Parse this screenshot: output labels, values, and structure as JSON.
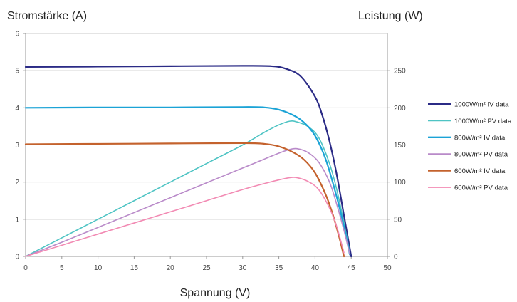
{
  "chart_data": {
    "type": "line",
    "ylabel_left": "Stromstärke (A)",
    "ylabel_right": "Leistung (W)",
    "xlabel": "Spannung (V)",
    "xlim": [
      0,
      50
    ],
    "ylim_left": [
      0,
      6
    ],
    "ylim_right": [
      0,
      300
    ],
    "x_ticks": [
      0,
      5,
      10,
      15,
      20,
      25,
      30,
      35,
      40,
      45,
      50
    ],
    "y_left_ticks": [
      0,
      1,
      2,
      3,
      4,
      5,
      6
    ],
    "y_right_ticks": [
      0,
      50,
      100,
      150,
      200,
      250
    ],
    "grid": true,
    "legend_position": "right",
    "series": [
      {
        "name": "1000W/m² IV data",
        "axis": "left",
        "color": "#2b2b86",
        "x": [
          0,
          10,
          20,
          30,
          34,
          36,
          38,
          40,
          41,
          42,
          43,
          44,
          45
        ],
        "y": [
          5.1,
          5.11,
          5.12,
          5.13,
          5.12,
          5.05,
          4.85,
          4.3,
          3.8,
          3.1,
          2.2,
          1.1,
          0
        ]
      },
      {
        "name": "1000W/m² PV data",
        "axis": "right",
        "color": "#4fc4c4",
        "x": [
          0,
          5,
          10,
          15,
          20,
          25,
          30,
          33,
          35,
          36.5,
          37.5,
          39,
          40.5,
          42,
          43,
          44,
          44.8
        ],
        "y": [
          0,
          25,
          50,
          75,
          100,
          125,
          150,
          167,
          177,
          182,
          181,
          175,
          160,
          125,
          90,
          45,
          5
        ]
      },
      {
        "name": "800W/m² IV data",
        "axis": "left",
        "color": "#1ba3d6",
        "x": [
          0,
          10,
          20,
          30,
          33,
          35,
          37,
          38.5,
          40,
          41.5,
          43,
          44,
          44.8
        ],
        "y": [
          4.0,
          4.01,
          4.01,
          4.02,
          4.01,
          3.95,
          3.8,
          3.6,
          3.25,
          2.6,
          1.6,
          0.8,
          0.05
        ]
      },
      {
        "name": "800W/m² PV data",
        "axis": "right",
        "color": "#b98ac9",
        "x": [
          0,
          5,
          10,
          15,
          20,
          25,
          30,
          33,
          35,
          36.5,
          37.5,
          39,
          40.5,
          42,
          43,
          44,
          44.8
        ],
        "y": [
          0,
          19,
          39,
          59,
          79,
          99,
          119,
          131,
          139,
          144,
          145,
          140,
          127,
          100,
          70,
          35,
          3
        ]
      },
      {
        "name": "600W/m² IV data",
        "axis": "left",
        "color": "#c4622d",
        "x": [
          0,
          10,
          20,
          30,
          33,
          35,
          37,
          38.5,
          40,
          41.5,
          42.5,
          43.3,
          44
        ],
        "y": [
          3.02,
          3.03,
          3.04,
          3.05,
          3.03,
          2.96,
          2.8,
          2.6,
          2.25,
          1.65,
          1.1,
          0.55,
          0
        ]
      },
      {
        "name": "600W/m² PV data",
        "axis": "right",
        "color": "#f28ab3",
        "x": [
          0,
          5,
          10,
          15,
          20,
          25,
          30,
          33,
          35,
          36.5,
          37.5,
          39,
          40.5,
          42,
          43,
          44
        ],
        "y": [
          0,
          15,
          30,
          45,
          60,
          75,
          90,
          98,
          103,
          106,
          106,
          101,
          90,
          65,
          40,
          5
        ]
      }
    ]
  }
}
